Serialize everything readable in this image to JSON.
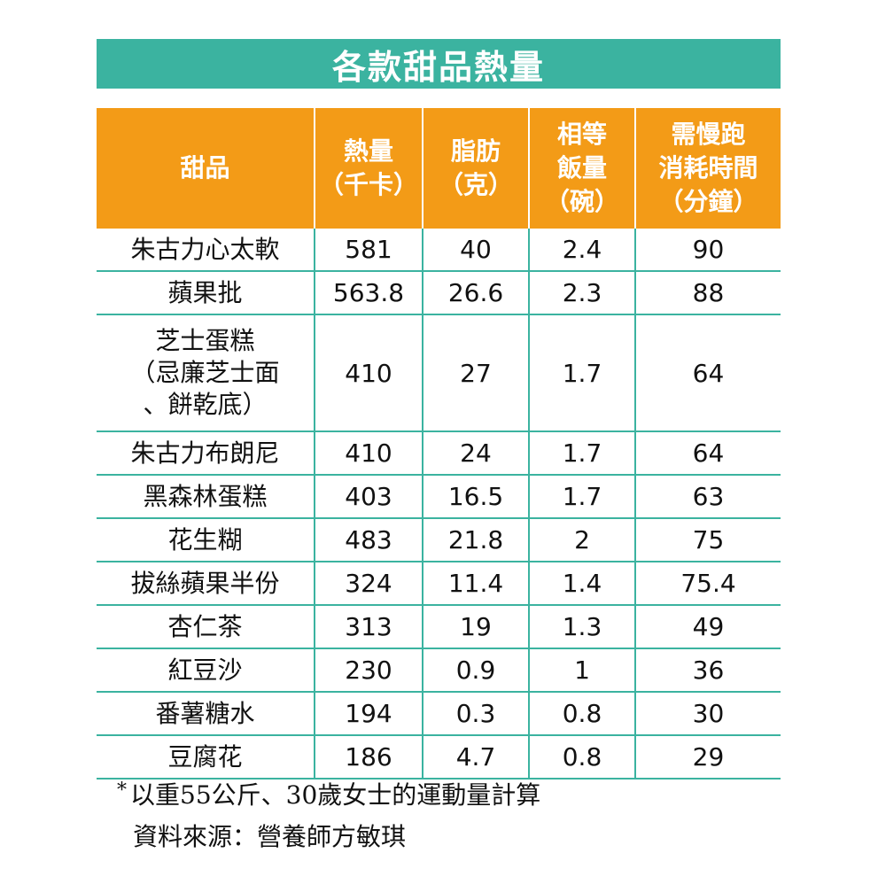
{
  "chart_data": {
    "type": "table",
    "title": "各款甜品熱量",
    "columns": [
      [
        "甜品"
      ],
      [
        "熱量",
        "（千卡）"
      ],
      [
        "脂肪",
        "（克）"
      ],
      [
        "相等",
        "飯量",
        "（碗）"
      ],
      [
        "需慢跑",
        "消耗時間",
        "（分鐘）"
      ]
    ],
    "rows": [
      {
        "name": [
          "朱古力心太軟"
        ],
        "values": [
          "581",
          "40",
          "2.4",
          "90"
        ]
      },
      {
        "name": [
          "蘋果批"
        ],
        "values": [
          "563.8",
          "26.6",
          "2.3",
          "88"
        ]
      },
      {
        "name": [
          "芝士蛋糕",
          "（忌廉芝士面",
          "、餅乾底）"
        ],
        "values": [
          "410",
          "27",
          "1.7",
          "64"
        ]
      },
      {
        "name": [
          "朱古力布朗尼"
        ],
        "values": [
          "410",
          "24",
          "1.7",
          "64"
        ]
      },
      {
        "name": [
          "黑森林蛋糕"
        ],
        "values": [
          "403",
          "16.5",
          "1.7",
          "63"
        ]
      },
      {
        "name": [
          "花生糊"
        ],
        "values": [
          "483",
          "21.8",
          "2",
          "75"
        ]
      },
      {
        "name": [
          "拔絲蘋果半份"
        ],
        "values": [
          "324",
          "11.4",
          "1.4",
          "75.4"
        ]
      },
      {
        "name": [
          "杏仁茶"
        ],
        "values": [
          "313",
          "19",
          "1.3",
          "49"
        ]
      },
      {
        "name": [
          "紅豆沙"
        ],
        "values": [
          "230",
          "0.9",
          "1",
          "36"
        ]
      },
      {
        "name": [
          "番薯糖水"
        ],
        "values": [
          "194",
          "0.3",
          "0.8",
          "30"
        ]
      },
      {
        "name": [
          "豆腐花"
        ],
        "values": [
          "186",
          "4.7",
          "0.8",
          "29"
        ]
      }
    ],
    "footnote": {
      "marker": "*",
      "text": "以重55公斤、30歲女士的運動量計算",
      "source": "資料來源：營養師方敏琪"
    }
  },
  "colors": {
    "title_bg": "#3bb3a0",
    "header_bg": "#f39b17",
    "grid": "#3bb3a0",
    "header_text": "#ffffff"
  }
}
